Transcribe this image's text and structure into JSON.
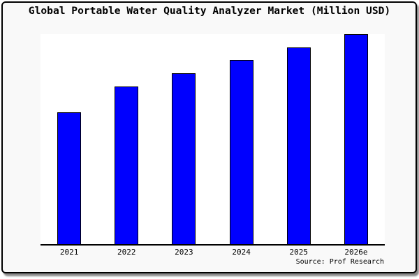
{
  "chart_data": {
    "type": "bar",
    "title": "Global Portable Water Quality Analyzer Market (Million USD)",
    "categories": [
      "2021",
      "2022",
      "2023",
      "2024",
      "2025",
      "2026e"
    ],
    "values": [
      62.9,
      75.0,
      81.4,
      87.6,
      93.8,
      100
    ],
    "value_scale": "relative height, % of 2026e bar (no y-axis values shown in chart)",
    "xlabel": "",
    "ylabel": "",
    "ylim": [
      0,
      100
    ],
    "grid": false,
    "legend": "none",
    "source": "Source: Prof Research"
  },
  "colors": {
    "bar_fill": "#0000fe",
    "bar_border": "#000000",
    "card_background": "#f9f9f9",
    "plot_background": "#ffffff",
    "axis_line": "#000000",
    "card_border": "#000000",
    "card_shadow": "#8c8c8c",
    "text": "#000000"
  }
}
